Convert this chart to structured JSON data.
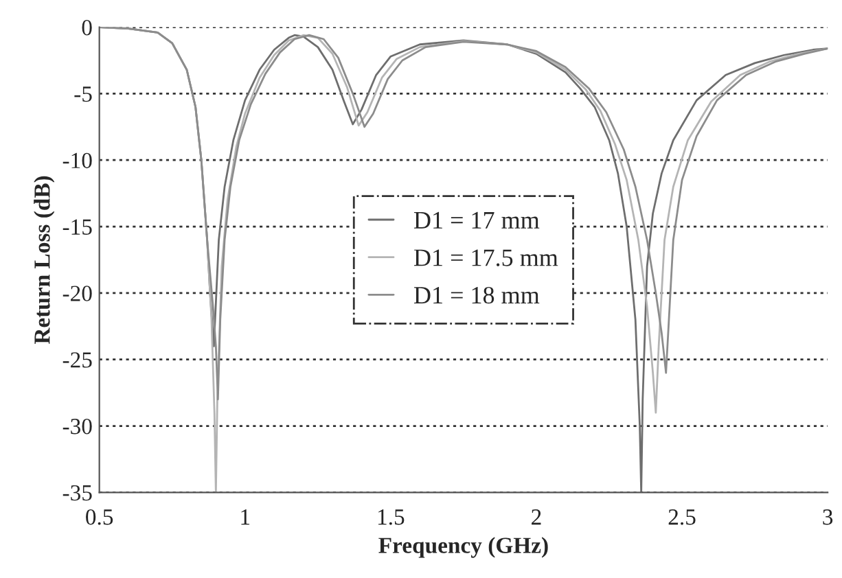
{
  "chart_data": {
    "type": "line",
    "xlabel": "Frequency (GHz)",
    "ylabel": "Return Loss (dB)",
    "xlim": [
      0.5,
      3
    ],
    "xticks": [
      0.5,
      1,
      1.5,
      2,
      2.5,
      3
    ],
    "ylim": [
      -35,
      0
    ],
    "yticks": [
      0,
      -5,
      -10,
      -15,
      -20,
      -25,
      -30,
      -35
    ],
    "grid": "y",
    "legend": "center",
    "marker": "none",
    "line_style": "solid",
    "series": [
      {
        "name": "D1 = 17 mm",
        "color": "#6e6e6e",
        "x": [
          0.5,
          0.6,
          0.7,
          0.75,
          0.8,
          0.83,
          0.85,
          0.87,
          0.88,
          0.893,
          0.91,
          0.93,
          0.96,
          1.0,
          1.05,
          1.1,
          1.15,
          1.17,
          1.2,
          1.25,
          1.3,
          1.34,
          1.37,
          1.4,
          1.45,
          1.5,
          1.6,
          1.75,
          1.9,
          2.0,
          2.1,
          2.15,
          2.2,
          2.25,
          2.28,
          2.31,
          2.34,
          2.355,
          2.36,
          2.365,
          2.38,
          2.4,
          2.43,
          2.47,
          2.55,
          2.65,
          2.75,
          2.85,
          2.95,
          3.0
        ],
        "values": [
          0,
          -0.1,
          -0.4,
          -1.2,
          -3.2,
          -6,
          -10,
          -16,
          -20,
          -24,
          -16,
          -12,
          -8.5,
          -5.5,
          -3.2,
          -1.7,
          -0.8,
          -0.6,
          -0.7,
          -1.5,
          -3.2,
          -5.6,
          -7.3,
          -6.2,
          -3.6,
          -2.2,
          -1.3,
          -1.0,
          -1.3,
          -2,
          -3.4,
          -4.6,
          -6,
          -8.5,
          -11,
          -15,
          -22,
          -30,
          -35,
          -28,
          -18,
          -14,
          -11,
          -8.5,
          -5.5,
          -3.6,
          -2.7,
          -2.1,
          -1.7,
          -1.6
        ]
      },
      {
        "name": "D1 = 17.5 mm",
        "color": "#b4b4b4",
        "x": [
          0.5,
          0.6,
          0.7,
          0.75,
          0.8,
          0.83,
          0.85,
          0.87,
          0.885,
          0.895,
          0.9,
          0.905,
          0.92,
          0.94,
          0.97,
          1.0,
          1.05,
          1.1,
          1.15,
          1.2,
          1.25,
          1.3,
          1.35,
          1.39,
          1.42,
          1.47,
          1.52,
          1.6,
          1.75,
          1.9,
          2.0,
          2.1,
          2.17,
          2.22,
          2.27,
          2.31,
          2.35,
          2.38,
          2.4,
          2.41,
          2.42,
          2.44,
          2.47,
          2.52,
          2.6,
          2.7,
          2.8,
          2.9,
          3.0
        ],
        "values": [
          0,
          -0.1,
          -0.4,
          -1.2,
          -3.2,
          -6,
          -10,
          -16,
          -22,
          -29,
          -35,
          -28,
          -18,
          -13,
          -9,
          -6.5,
          -3.8,
          -2.1,
          -1.0,
          -0.6,
          -0.8,
          -2.0,
          -4.5,
          -7.4,
          -6.4,
          -3.8,
          -2.4,
          -1.5,
          -1.05,
          -1.3,
          -1.9,
          -3.2,
          -4.7,
          -6.3,
          -8.8,
          -11.5,
          -16,
          -21,
          -26,
          -29,
          -24,
          -16,
          -12,
          -8.5,
          -5.6,
          -3.6,
          -2.6,
          -2.0,
          -1.6
        ]
      },
      {
        "name": "D1 = 18 mm",
        "color": "#8c8c8c",
        "x": [
          0.5,
          0.6,
          0.7,
          0.75,
          0.8,
          0.83,
          0.85,
          0.87,
          0.89,
          0.9,
          0.907,
          0.915,
          0.93,
          0.95,
          0.98,
          1.02,
          1.07,
          1.12,
          1.17,
          1.22,
          1.27,
          1.32,
          1.37,
          1.41,
          1.44,
          1.49,
          1.54,
          1.62,
          1.75,
          1.9,
          2.0,
          2.1,
          2.18,
          2.24,
          2.3,
          2.34,
          2.38,
          2.41,
          2.43,
          2.445,
          2.455,
          2.47,
          2.5,
          2.55,
          2.62,
          2.72,
          2.82,
          2.92,
          3.0
        ],
        "values": [
          0,
          -0.1,
          -0.4,
          -1.2,
          -3.2,
          -6,
          -10,
          -16,
          -21,
          -24,
          -28,
          -22,
          -16,
          -12,
          -8.5,
          -5.8,
          -3.5,
          -1.9,
          -0.9,
          -0.6,
          -0.9,
          -2.3,
          -5,
          -7.5,
          -6.5,
          -3.9,
          -2.5,
          -1.5,
          -1.1,
          -1.3,
          -1.8,
          -3.0,
          -4.6,
          -6.4,
          -9.2,
          -12,
          -16,
          -20,
          -23,
          -26,
          -22,
          -16,
          -11.5,
          -8.2,
          -5.5,
          -3.6,
          -2.6,
          -2.0,
          -1.6
        ]
      }
    ]
  }
}
